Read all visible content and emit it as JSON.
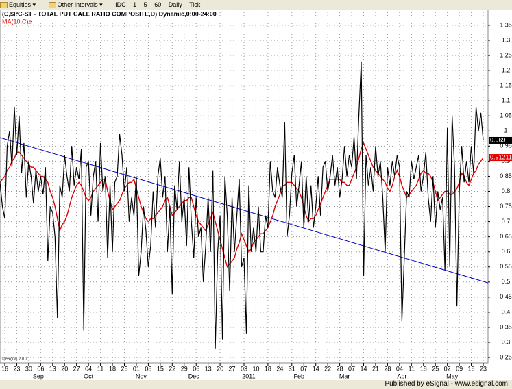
{
  "toolbar": {
    "items": [
      "Equities ▾",
      "Other Intervals ▾",
      "IDC",
      "1",
      "5",
      "60",
      "Daily",
      "Tick"
    ]
  },
  "footer": {
    "copyright": "© eSignal, 2010",
    "published": "Published by eSignal - www.esignal.com"
  },
  "chart_data": {
    "type": "line",
    "title": "(C,$PC-ST - TOTAL PUT CALL RATIO COMPOSITE,D) Dynamic,0:00-24:00",
    "subtitle": "MA(10,C)e",
    "xlim": [
      0,
      204
    ],
    "ylim": [
      0.232,
      1.402
    ],
    "yticks": [
      0.25,
      0.3,
      0.35,
      0.4,
      0.45,
      0.5,
      0.55,
      0.6,
      0.65,
      0.7,
      0.75,
      0.8,
      0.85,
      0.9,
      0.95,
      1,
      1.05,
      1.1,
      1.15,
      1.2,
      1.25,
      1.3,
      1.35
    ],
    "xticks": [
      {
        "value": 2,
        "label": "16"
      },
      {
        "value": 7,
        "label": "23"
      },
      {
        "value": 12,
        "label": "30"
      },
      {
        "value": 17,
        "label": "06"
      },
      {
        "value": 22,
        "label": "13"
      },
      {
        "value": 27,
        "label": "20"
      },
      {
        "value": 32,
        "label": "27"
      },
      {
        "value": 37,
        "label": "04"
      },
      {
        "value": 42,
        "label": "11"
      },
      {
        "value": 47,
        "label": "18"
      },
      {
        "value": 52,
        "label": "25"
      },
      {
        "value": 57,
        "label": "01"
      },
      {
        "value": 62,
        "label": "08"
      },
      {
        "value": 67,
        "label": "15"
      },
      {
        "value": 72,
        "label": "22"
      },
      {
        "value": 77,
        "label": "29"
      },
      {
        "value": 82,
        "label": "06"
      },
      {
        "value": 87,
        "label": "13"
      },
      {
        "value": 92,
        "label": "20"
      },
      {
        "value": 97,
        "label": "27"
      },
      {
        "value": 102,
        "label": "03"
      },
      {
        "value": 107,
        "label": "10"
      },
      {
        "value": 112,
        "label": "18"
      },
      {
        "value": 117,
        "label": "24"
      },
      {
        "value": 122,
        "label": "31"
      },
      {
        "value": 127,
        "label": "07"
      },
      {
        "value": 132,
        "label": "14"
      },
      {
        "value": 137,
        "label": "22"
      },
      {
        "value": 142,
        "label": "28"
      },
      {
        "value": 147,
        "label": "07"
      },
      {
        "value": 152,
        "label": "14"
      },
      {
        "value": 157,
        "label": "21"
      },
      {
        "value": 162,
        "label": "28"
      },
      {
        "value": 167,
        "label": "04"
      },
      {
        "value": 172,
        "label": "11"
      },
      {
        "value": 177,
        "label": "18"
      },
      {
        "value": 182,
        "label": "25"
      },
      {
        "value": 187,
        "label": "02"
      },
      {
        "value": 192,
        "label": "09"
      },
      {
        "value": 197,
        "label": "16"
      },
      {
        "value": 202,
        "label": "23"
      }
    ],
    "month_labels": [
      {
        "value": 16,
        "label": "Sep"
      },
      {
        "value": 37,
        "label": "Oct"
      },
      {
        "value": 59,
        "label": "Nov"
      },
      {
        "value": 81,
        "label": "Dec"
      },
      {
        "value": 104,
        "label": "2011"
      },
      {
        "value": 125,
        "label": "Feb"
      },
      {
        "value": 144,
        "label": "Mar"
      },
      {
        "value": 168,
        "label": "Apr"
      },
      {
        "value": 189,
        "label": "May"
      }
    ],
    "grid": true,
    "series": [
      {
        "name": "$PC-ST",
        "color": "#000000",
        "last_label": "0.969",
        "values": [
          0.83,
          0.75,
          0.71,
          0.95,
          1.0,
          0.88,
          1.08,
          0.92,
          1.05,
          0.86,
          0.96,
          0.78,
          0.9,
          0.85,
          0.76,
          0.87,
          0.8,
          0.85,
          0.79,
          0.88,
          0.57,
          0.75,
          0.73,
          0.65,
          0.38,
          0.82,
          0.78,
          0.92,
          0.85,
          0.8,
          0.95,
          0.82,
          0.88,
          0.84,
          0.94,
          0.34,
          0.88,
          0.9,
          0.72,
          0.85,
          0.9,
          0.7,
          0.96,
          0.8,
          0.85,
          0.58,
          0.82,
          0.6,
          0.83,
          0.85,
          0.99,
          0.92,
          0.8,
          0.88,
          0.7,
          0.78,
          0.72,
          0.85,
          0.52,
          0.6,
          0.75,
          0.67,
          0.55,
          0.62,
          0.8,
          0.68,
          0.85,
          0.91,
          0.78,
          0.85,
          0.6,
          0.75,
          0.46,
          0.82,
          0.74,
          0.9,
          0.7,
          0.78,
          0.62,
          0.88,
          0.7,
          0.58,
          0.78,
          0.65,
          0.68,
          0.5,
          0.62,
          0.78,
          0.6,
          0.87,
          0.28,
          0.6,
          0.72,
          0.31,
          0.85,
          0.72,
          0.47,
          0.78,
          0.6,
          0.72,
          0.84,
          0.55,
          0.58,
          0.33,
          0.82,
          0.6,
          0.68,
          0.6,
          0.75,
          0.6,
          0.6,
          0.72,
          0.68,
          0.9,
          0.8,
          0.78,
          0.88,
          0.82,
          0.78,
          1.03,
          0.65,
          0.72,
          0.86,
          0.92,
          0.75,
          0.82,
          0.9,
          0.68,
          0.85,
          0.7,
          0.82,
          0.68,
          0.75,
          0.85,
          0.72,
          0.88,
          0.9,
          0.8,
          0.85,
          0.92,
          0.82,
          0.88,
          0.78,
          0.84,
          0.95,
          0.85,
          0.92,
          0.88,
          0.98,
          0.84,
          1.05,
          1.23,
          0.52,
          0.92,
          0.82,
          0.88,
          0.8,
          0.95,
          0.85,
          0.9,
          0.78,
          0.6,
          0.88,
          0.82,
          0.9,
          0.85,
          0.92,
          0.88,
          0.37,
          0.58,
          0.8,
          0.78,
          0.9,
          0.84,
          0.88,
          0.92,
          0.8,
          0.85,
          0.93,
          0.78,
          0.7,
          0.85,
          0.68,
          0.8,
          0.74,
          0.78,
          0.54,
          1.01,
          0.55,
          1.05,
          0.88,
          0.42,
          0.8,
          0.95,
          0.83,
          0.9,
          0.83,
          0.95,
          0.86,
          1.08,
          1.0,
          1.06,
          0.969
        ]
      },
      {
        "name": "MA(10,C)e",
        "color": "#e00000",
        "last_label": "0.912111",
        "values": [
          0.83,
          0.84,
          0.85,
          0.87,
          0.88,
          0.9,
          0.91,
          0.93,
          0.93,
          0.92,
          0.91,
          0.9,
          0.89,
          0.88,
          0.88,
          0.87,
          0.86,
          0.85,
          0.85,
          0.84,
          0.83,
          0.8,
          0.78,
          0.75,
          0.71,
          0.67,
          0.69,
          0.7,
          0.72,
          0.75,
          0.78,
          0.8,
          0.82,
          0.83,
          0.82,
          0.8,
          0.78,
          0.77,
          0.78,
          0.8,
          0.81,
          0.82,
          0.83,
          0.84,
          0.84,
          0.8,
          0.77,
          0.74,
          0.75,
          0.76,
          0.77,
          0.79,
          0.81,
          0.82,
          0.83,
          0.83,
          0.84,
          0.81,
          0.78,
          0.75,
          0.73,
          0.71,
          0.7,
          0.71,
          0.71,
          0.72,
          0.73,
          0.74,
          0.75,
          0.77,
          0.78,
          0.75,
          0.72,
          0.73,
          0.74,
          0.75,
          0.76,
          0.77,
          0.77,
          0.78,
          0.78,
          0.75,
          0.72,
          0.7,
          0.69,
          0.68,
          0.67,
          0.69,
          0.71,
          0.73,
          0.7,
          0.67,
          0.64,
          0.61,
          0.58,
          0.55,
          0.56,
          0.57,
          0.58,
          0.61,
          0.63,
          0.66,
          0.64,
          0.62,
          0.6,
          0.61,
          0.63,
          0.64,
          0.65,
          0.66,
          0.66,
          0.67,
          0.68,
          0.7,
          0.72,
          0.75,
          0.77,
          0.79,
          0.82,
          0.82,
          0.83,
          0.83,
          0.83,
          0.82,
          0.81,
          0.8,
          0.78,
          0.75,
          0.72,
          0.7,
          0.71,
          0.71,
          0.72,
          0.74,
          0.76,
          0.78,
          0.8,
          0.82,
          0.84,
          0.84,
          0.84,
          0.84,
          0.84,
          0.83,
          0.83,
          0.82,
          0.82,
          0.84,
          0.86,
          0.88,
          0.91,
          0.94,
          0.96,
          0.94,
          0.92,
          0.9,
          0.88,
          0.87,
          0.86,
          0.85,
          0.84,
          0.83,
          0.81,
          0.8,
          0.82,
          0.85,
          0.87,
          0.85,
          0.82,
          0.8,
          0.78,
          0.79,
          0.8,
          0.81,
          0.82,
          0.84,
          0.86,
          0.87,
          0.86,
          0.86,
          0.85,
          0.83,
          0.8,
          0.77,
          0.78,
          0.79,
          0.8,
          0.8,
          0.79,
          0.79,
          0.8,
          0.81,
          0.83,
          0.86,
          0.85,
          0.83,
          0.82,
          0.84,
          0.86,
          0.87,
          0.89,
          0.9,
          0.912111
        ]
      }
    ],
    "trendline": {
      "color": "#0000cc",
      "x": [
        0,
        204
      ],
      "values": [
        0.978,
        0.497
      ]
    }
  }
}
